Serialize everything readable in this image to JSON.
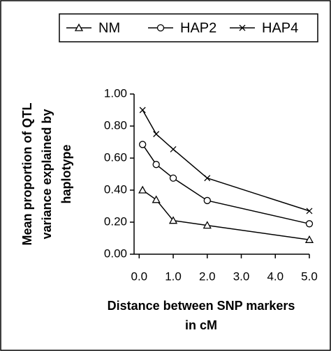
{
  "chart_data": {
    "type": "line",
    "ylabel": [
      "Mean proportion of QTL",
      "variance explained by",
      "haplotype"
    ],
    "xlabel": [
      "Distance between SNP markers",
      "in cM"
    ],
    "x": [
      0.1,
      0.5,
      1.0,
      2.0,
      5.0
    ],
    "series": [
      {
        "name": "NM",
        "color": "#000000",
        "marker": "triangle",
        "values": [
          0.4,
          0.34,
          0.21,
          0.18,
          0.09
        ]
      },
      {
        "name": "HAP2",
        "color": "#000000",
        "marker": "circle",
        "values": [
          0.685,
          0.56,
          0.475,
          0.335,
          0.19
        ]
      },
      {
        "name": "HAP4",
        "color": "#000000",
        "marker": "x",
        "values": [
          0.9,
          0.75,
          0.655,
          0.475,
          0.27
        ]
      }
    ],
    "xlim": [
      -0.15,
      5.0
    ],
    "xticks": [
      {
        "value": 0,
        "label": "0.0"
      },
      {
        "value": 1,
        "label": "1.0"
      },
      {
        "value": 2,
        "label": "2.0"
      },
      {
        "value": 3,
        "label": "3.0"
      },
      {
        "value": 4,
        "label": "4.0"
      },
      {
        "value": 5,
        "label": "5.0"
      }
    ],
    "ylim": [
      0,
      1
    ],
    "yticks": [
      {
        "value": 0,
        "label": "0.00"
      },
      {
        "value": 0.2,
        "label": "0.20"
      },
      {
        "value": 0.4,
        "label": "0.40"
      },
      {
        "value": 0.6,
        "label": "0.60"
      },
      {
        "value": 0.8,
        "label": "0.80"
      },
      {
        "value": 1,
        "label": "1.00"
      }
    ],
    "legend": "top"
  }
}
